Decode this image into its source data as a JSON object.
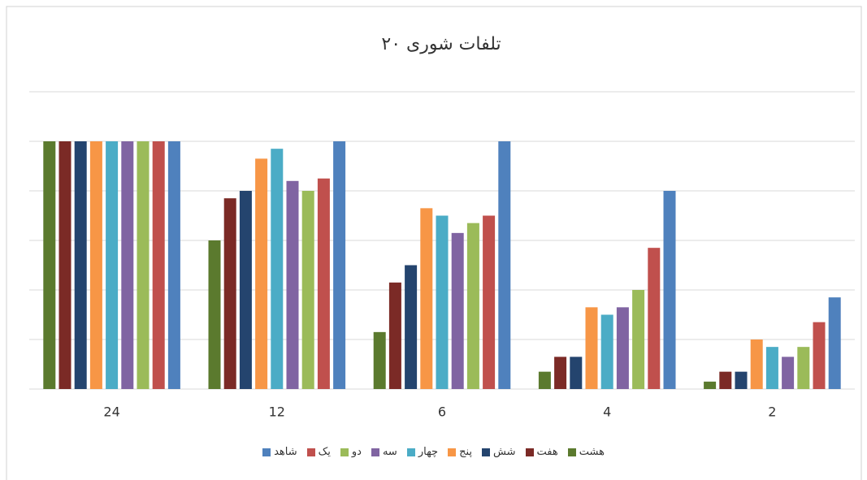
{
  "chart_data": {
    "type": "bar",
    "title": "تلفات شوری ۲۰",
    "categories": [
      "24",
      "12",
      "6",
      "4",
      "2"
    ],
    "series": [
      {
        "name": "هشت",
        "color": "#5b7a2e",
        "values": [
          100,
          60,
          23,
          7,
          3
        ]
      },
      {
        "name": "هفت",
        "color": "#7b2a26",
        "values": [
          100,
          77,
          43,
          13,
          7
        ]
      },
      {
        "name": "شش",
        "color": "#24446e",
        "values": [
          100,
          80,
          50,
          13,
          7
        ]
      },
      {
        "name": "پنج",
        "color": "#f79646",
        "values": [
          100,
          93,
          73,
          33,
          20
        ]
      },
      {
        "name": "چهار",
        "color": "#4bacc6",
        "values": [
          100,
          97,
          70,
          30,
          17
        ]
      },
      {
        "name": "سه",
        "color": "#8064a2",
        "values": [
          100,
          84,
          63,
          33,
          13
        ]
      },
      {
        "name": "دو",
        "color": "#9bbb59",
        "values": [
          100,
          80,
          67,
          40,
          17
        ]
      },
      {
        "name": "یک",
        "color": "#c0504d",
        "values": [
          100,
          85,
          70,
          57,
          27
        ]
      },
      {
        "name": "شاهد",
        "color": "#4f81bd",
        "values": [
          100,
          100,
          100,
          80,
          37
        ]
      }
    ],
    "ylim": [
      0,
      120
    ],
    "yticks": [
      0,
      20,
      40,
      60,
      80,
      100,
      120
    ],
    "grid": true
  }
}
